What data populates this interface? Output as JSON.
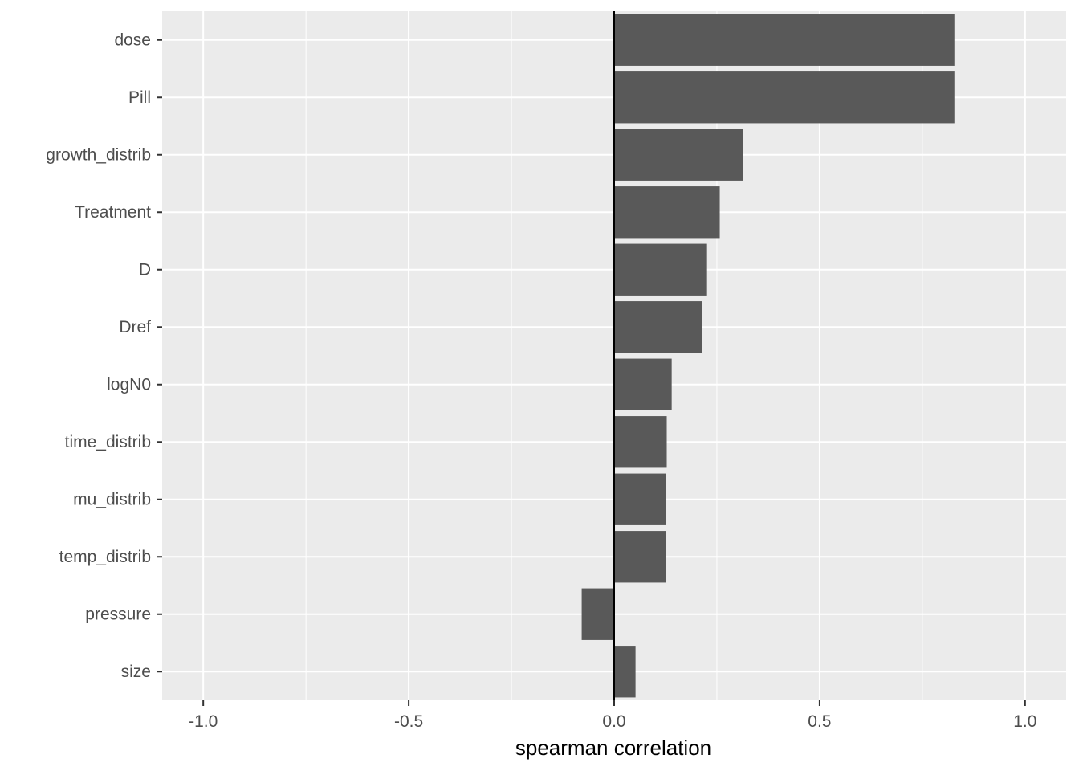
{
  "chart_data": {
    "type": "bar",
    "orientation": "horizontal",
    "title": "",
    "xlabel": "spearman correlation",
    "ylabel": "",
    "xlim": [
      -1.1,
      1.1
    ],
    "x_ticks": [
      -1.0,
      -0.5,
      0.0,
      0.5,
      1.0
    ],
    "x_tick_labels": [
      "-1.0",
      "-0.5",
      "0.0",
      "0.5",
      "1.0"
    ],
    "categories": [
      "dose",
      "Pill",
      "growth_distrib",
      "Treatment",
      "D",
      "Dref",
      "logN0",
      "time_distrib",
      "mu_distrib",
      "temp_distrib",
      "pressure",
      "size"
    ],
    "values": [
      0.828,
      0.828,
      0.313,
      0.257,
      0.226,
      0.214,
      0.14,
      0.128,
      0.126,
      0.126,
      -0.079,
      0.052
    ],
    "grid": true,
    "reference_line": 0,
    "legend": "none",
    "colors": {
      "panel": "#ebebeb",
      "grid": "#ffffff",
      "bar": "#595959",
      "reference_line": "#000000"
    }
  }
}
